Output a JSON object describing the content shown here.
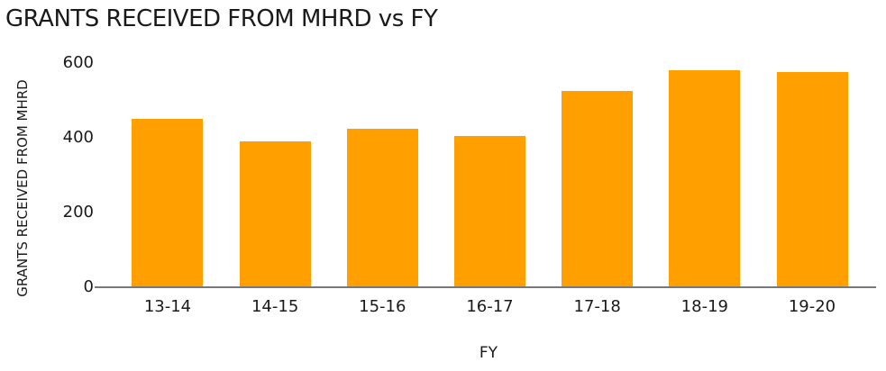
{
  "chart_data": {
    "type": "bar",
    "title": "GRANTS RECEIVED FROM MHRD vs FY",
    "categories": [
      "13-14",
      "14-15",
      "15-16",
      "16-17",
      "17-18",
      "18-19",
      "19-20"
    ],
    "values": [
      450,
      390,
      425,
      405,
      525,
      580,
      575
    ],
    "xlabel": "FY",
    "ylabel": "GRANTS RECEIVED FROM MHRD",
    "yticks": [
      0,
      200,
      400,
      600
    ],
    "ylim": [
      0,
      600
    ],
    "grid": false,
    "legend": false
  },
  "colors": {
    "bar": "#FFA000",
    "axis_line": "#787878",
    "text": "#1a1a1a"
  }
}
